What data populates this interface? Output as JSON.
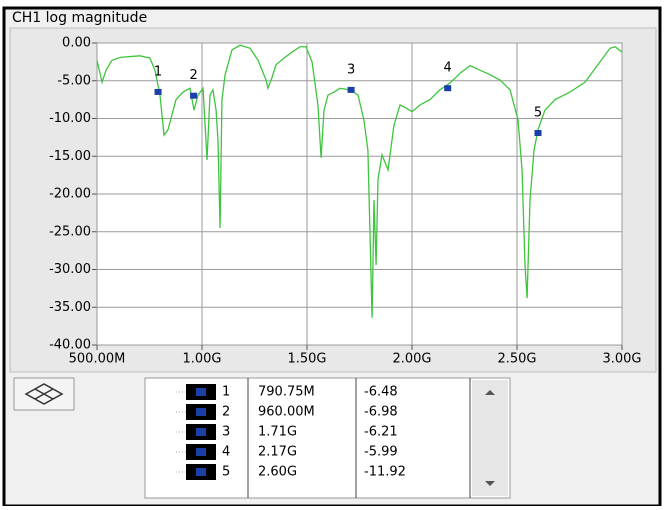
{
  "chart_data": {
    "type": "line",
    "title": "CH1 log magnitude",
    "xlim": [
      500,
      3000
    ],
    "xticks": [
      {
        "value": 500,
        "label": "500.00M"
      },
      {
        "value": 1000,
        "label": "1.00G"
      },
      {
        "value": 1500,
        "label": "1.50G"
      },
      {
        "value": 2000,
        "label": "2.00G"
      },
      {
        "value": 2500,
        "label": "2.50G"
      },
      {
        "value": 3000,
        "label": "3.00G"
      }
    ],
    "ylim": [
      -40,
      0
    ],
    "yticks": [
      {
        "value": 0,
        "label": "0.00"
      },
      {
        "value": -5,
        "label": "-5.00"
      },
      {
        "value": -10,
        "label": "-10.00"
      },
      {
        "value": -15,
        "label": "-15.00"
      },
      {
        "value": -20,
        "label": "-20.00"
      },
      {
        "value": -25,
        "label": "-25.00"
      },
      {
        "value": -30,
        "label": "-30.00"
      },
      {
        "value": -35,
        "label": "-35.00"
      },
      {
        "value": -40,
        "label": "-40.00"
      }
    ],
    "grid": true,
    "series": [
      {
        "color": "#3ec43e",
        "x": [
          500,
          524,
          543,
          571,
          610,
          705,
          752,
          776,
          800,
          819,
          838,
          857,
          876,
          910,
          943,
          962,
          981,
          1005,
          1024,
          1038,
          1052,
          1067,
          1076,
          1086,
          1095,
          1110,
          1143,
          1181,
          1229,
          1267,
          1305,
          1314,
          1333,
          1352,
          1390,
          1429,
          1467,
          1495,
          1524,
          1552,
          1567,
          1581,
          1600,
          1629,
          1657,
          1705,
          1743,
          1771,
          1790,
          1810,
          1819,
          1829,
          1838,
          1857,
          1886,
          1914,
          1943,
          1971,
          2000,
          2038,
          2086,
          2133,
          2181,
          2229,
          2276,
          2324,
          2371,
          2419,
          2467,
          2505,
          2524,
          2538,
          2548,
          2562,
          2581,
          2600,
          2633,
          2681,
          2752,
          2824,
          2895,
          2943,
          2967,
          3000
        ],
        "values": [
          -2.3,
          -5.2,
          -3.6,
          -2.3,
          -1.9,
          -1.7,
          -2.0,
          -3.6,
          -6.9,
          -12.2,
          -11.5,
          -9.5,
          -7.5,
          -6.5,
          -6.0,
          -8.9,
          -6.9,
          -6.0,
          -15.5,
          -6.9,
          -6.2,
          -8.9,
          -12.8,
          -24.5,
          -7.5,
          -4.2,
          -0.9,
          -0.3,
          -0.7,
          -2.3,
          -4.9,
          -6.0,
          -4.6,
          -2.9,
          -2.0,
          -1.2,
          -0.5,
          -0.5,
          -2.5,
          -8.2,
          -15.2,
          -8.9,
          -6.9,
          -6.5,
          -6.0,
          -6.2,
          -6.9,
          -10.2,
          -14.2,
          -36.4,
          -20.8,
          -29.4,
          -18.1,
          -14.8,
          -16.8,
          -10.9,
          -8.2,
          -8.6,
          -9.1,
          -8.2,
          -7.5,
          -6.2,
          -5.3,
          -4.0,
          -3.0,
          -3.6,
          -4.2,
          -4.9,
          -6.2,
          -10.2,
          -16.8,
          -29.4,
          -33.8,
          -20.8,
          -14.2,
          -11.5,
          -8.9,
          -7.5,
          -6.5,
          -5.2,
          -2.5,
          -0.7,
          -0.5,
          -1.2
        ]
      }
    ],
    "markers": [
      {
        "label": "1",
        "x": 790.75,
        "x_label": "790.75M",
        "y": -6.48
      },
      {
        "label": "2",
        "x": 960,
        "x_label": "960.00M",
        "y": -6.98
      },
      {
        "label": "3",
        "x": 1710,
        "x_label": "1.71G",
        "y": -6.21
      },
      {
        "label": "4",
        "x": 2170,
        "x_label": "2.17G",
        "y": -5.99
      },
      {
        "label": "5",
        "x": 2600,
        "x_label": "2.60G",
        "y": -11.92
      }
    ],
    "marker_color": "#1a3fa8"
  }
}
